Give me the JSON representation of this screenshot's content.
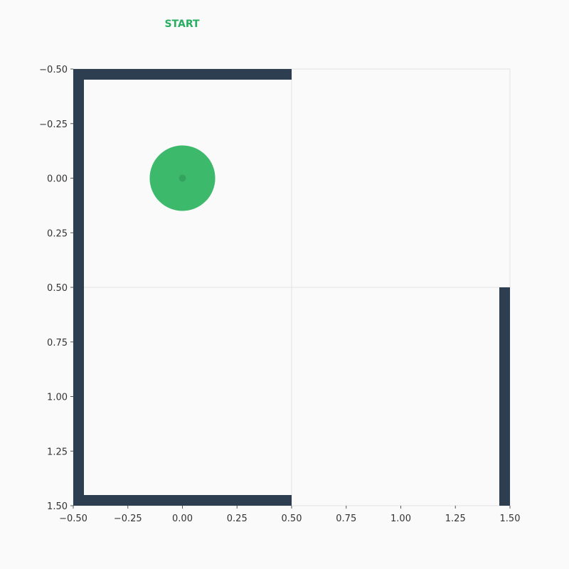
{
  "maze": {
    "start_label": "START",
    "grid": {
      "cols": 2,
      "rows": 2
    },
    "x_range": [
      -0.5,
      1.5
    ],
    "y_range": [
      -0.5,
      1.5
    ],
    "y_axis_inverted": true,
    "x_ticks": [
      "−0.50",
      "−0.25",
      "0.00",
      "0.25",
      "0.50",
      "0.75",
      "1.00",
      "1.25",
      "1.50"
    ],
    "y_ticks": [
      "−0.50",
      "−0.25",
      "0.00",
      "0.25",
      "0.50",
      "0.75",
      "1.00",
      "1.25",
      "1.50"
    ],
    "tick_values": [
      -0.5,
      -0.25,
      0,
      0.25,
      0.5,
      0.75,
      1.0,
      1.25,
      1.5
    ],
    "walls": [
      {
        "x1": -0.5,
        "y1": -0.5,
        "x2": 0.5,
        "y2": -0.5
      },
      {
        "x1": -0.5,
        "y1": -0.5,
        "x2": -0.5,
        "y2": 1.5
      },
      {
        "x1": -0.5,
        "y1": 1.5,
        "x2": 0.5,
        "y2": 1.5
      },
      {
        "x1": 1.5,
        "y1": 0.5,
        "x2": 1.5,
        "y2": 1.5
      }
    ],
    "player": {
      "x": 0.0,
      "y": 0.0,
      "radius": 0.15
    },
    "colors": {
      "background": "#fafafa",
      "wall": "#2c3e50",
      "player": "#3cb96b",
      "player_center": "#34a35d",
      "start_label": "#27ae60",
      "grid": "#e3e3e3"
    }
  }
}
